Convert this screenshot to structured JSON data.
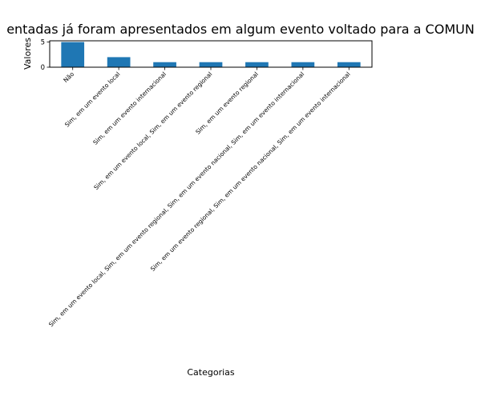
{
  "chart_data": {
    "type": "bar",
    "title": "entadas já foram apresentados em algum evento voltado para a COMUN",
    "xlabel": "Categorias",
    "ylabel": "Valores",
    "categories": [
      "Não",
      "Sim, em um evento local",
      "Sim, em um evento internacional",
      "Sim, em um evento local, Sim, em um evento regional",
      "Sim, em um evento regional",
      "Sim, em um evento local, Sim, em um evento regional, Sim, em um evento nacional, Sim, em um evento internacional",
      "Sim, em um evento regional, Sim, em um evento nacional, Sim, em um evento internacional"
    ],
    "values": [
      5,
      2,
      1,
      1,
      1,
      1,
      1
    ],
    "yticks": [
      0,
      5
    ],
    "ylim": [
      0,
      5.25
    ],
    "grid": false,
    "legend": "none",
    "bar_color": "#1f77b4"
  }
}
